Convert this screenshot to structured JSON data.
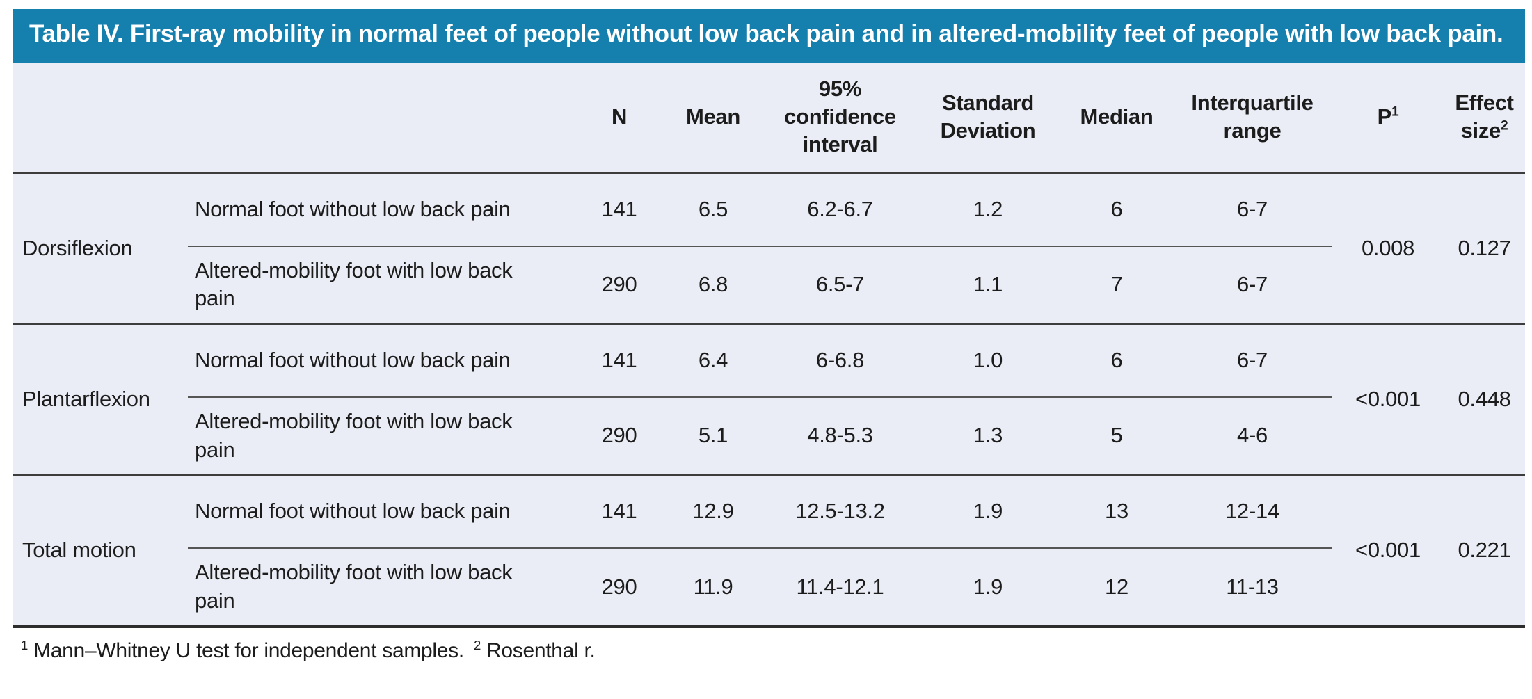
{
  "title": "Table IV. First-ray mobility in normal feet of people without low back pain and in altered-mobility feet of people with low back pain.",
  "colors": {
    "title_bar_bg": "#157fae",
    "title_text": "#ffffff",
    "table_bg": "#eaedf5",
    "body_text": "#1c1c1c",
    "section_rule": "#3d3d3d",
    "subrow_rule": "#555555",
    "bottom_rule": "#2d2d2d"
  },
  "table": {
    "headers": {
      "group": "",
      "condition": "",
      "n": "N",
      "mean": "Mean",
      "ci": "95% confidence interval",
      "sd": "Standard Deviation",
      "median": "Median",
      "iqr": "Interquartile range",
      "p": {
        "label": "P",
        "sup": "1"
      },
      "effect": {
        "label": "Effect size",
        "sup": "2"
      }
    },
    "sections": [
      {
        "group": "Dorsiflexion",
        "p": "0.008",
        "effect_size": "0.127",
        "rows": [
          {
            "label": "Normal foot without low back pain",
            "n": "141",
            "mean": "6.5",
            "ci": "6.2-6.7",
            "sd": "1.2",
            "median": "6",
            "iqr": "6-7"
          },
          {
            "label": "Altered-mobility foot with low back pain",
            "n": "290",
            "mean": "6.8",
            "ci": "6.5-7",
            "sd": "1.1",
            "median": "7",
            "iqr": "6-7"
          }
        ]
      },
      {
        "group": "Plantarflexion",
        "p": "<0.001",
        "effect_size": "0.448",
        "rows": [
          {
            "label": "Normal foot without low back pain",
            "n": "141",
            "mean": "6.4",
            "ci": "6-6.8",
            "sd": "1.0",
            "median": "6",
            "iqr": "6-7"
          },
          {
            "label": "Altered-mobility foot with low back pain",
            "n": "290",
            "mean": "5.1",
            "ci": "4.8-5.3",
            "sd": "1.3",
            "median": "5",
            "iqr": "4-6"
          }
        ]
      },
      {
        "group": "Total motion",
        "p": "<0.001",
        "effect_size": "0.221",
        "rows": [
          {
            "label": "Normal foot without low back pain",
            "n": "141",
            "mean": "12.9",
            "ci": "12.5-13.2",
            "sd": "1.9",
            "median": "13",
            "iqr": "12-14"
          },
          {
            "label": "Altered-mobility foot with low back pain",
            "n": "290",
            "mean": "11.9",
            "ci": "11.4-12.1",
            "sd": "1.9",
            "median": "12",
            "iqr": "11-13"
          }
        ]
      }
    ]
  },
  "footnotes": [
    {
      "sup": "1",
      "text": "Mann–Whitney U test for independent samples."
    },
    {
      "sup": "2",
      "text": "Rosenthal r."
    }
  ]
}
